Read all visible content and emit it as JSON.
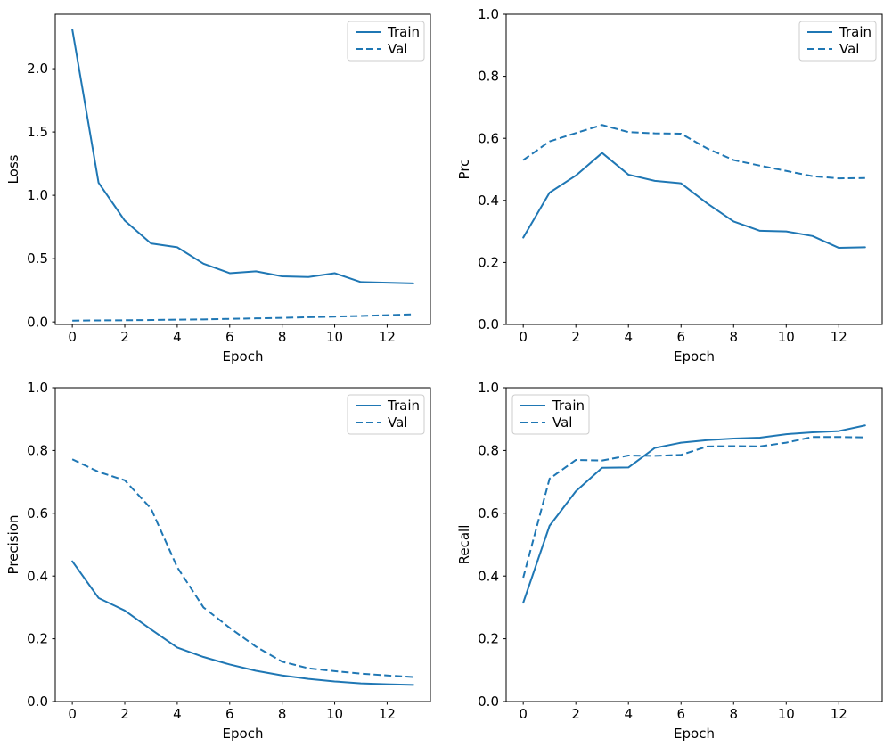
{
  "figure": {
    "background": "#ffffff",
    "line_color": "#1f77b4",
    "spine_color": "#000000",
    "legend_border_color": "#cccccc"
  },
  "legend": {
    "train_label": "Train",
    "val_label": "Val"
  },
  "chart_data": [
    {
      "id": "loss",
      "type": "line",
      "title": "",
      "xlabel": "Epoch",
      "ylabel": "Loss",
      "x": [
        0,
        1,
        2,
        3,
        4,
        5,
        6,
        7,
        8,
        9,
        10,
        11,
        12,
        13
      ],
      "series": [
        {
          "name": "Train",
          "style": "solid",
          "values": [
            2.31,
            1.1,
            0.8,
            0.62,
            0.59,
            0.46,
            0.385,
            0.4,
            0.36,
            0.355,
            0.385,
            0.315,
            0.31,
            0.305
          ]
        },
        {
          "name": "Val",
          "style": "dashed",
          "values": [
            0.01,
            0.012,
            0.013,
            0.015,
            0.018,
            0.02,
            0.024,
            0.028,
            0.032,
            0.037,
            0.042,
            0.047,
            0.053,
            0.06
          ]
        }
      ],
      "xlim": [
        -0.65,
        13.65
      ],
      "ylim": [
        -0.02,
        2.43
      ],
      "xticks": [
        0,
        2,
        4,
        6,
        8,
        10,
        12
      ],
      "xtick_labels": [
        "0",
        "2",
        "4",
        "6",
        "8",
        "10",
        "12"
      ],
      "yticks": [
        0.0,
        0.5,
        1.0,
        1.5,
        2.0
      ],
      "ytick_labels": [
        "0.0",
        "0.5",
        "1.0",
        "1.5",
        "2.0"
      ],
      "legend_pos": "upper-right",
      "grid": false
    },
    {
      "id": "prc",
      "type": "line",
      "title": "",
      "xlabel": "Epoch",
      "ylabel": "Prc",
      "x": [
        0,
        1,
        2,
        3,
        4,
        5,
        6,
        7,
        8,
        9,
        10,
        11,
        12,
        13
      ],
      "series": [
        {
          "name": "Train",
          "style": "solid",
          "values": [
            0.28,
            0.425,
            0.48,
            0.553,
            0.483,
            0.463,
            0.455,
            0.39,
            0.332,
            0.302,
            0.3,
            0.285,
            0.247,
            0.249
          ]
        },
        {
          "name": "Val",
          "style": "dashed",
          "values": [
            0.53,
            0.59,
            0.617,
            0.643,
            0.62,
            0.616,
            0.615,
            0.567,
            0.53,
            0.512,
            0.495,
            0.478,
            0.471,
            0.472
          ]
        }
      ],
      "xlim": [
        -0.65,
        13.65
      ],
      "ylim": [
        0.0,
        1.0
      ],
      "xticks": [
        0,
        2,
        4,
        6,
        8,
        10,
        12
      ],
      "xtick_labels": [
        "0",
        "2",
        "4",
        "6",
        "8",
        "10",
        "12"
      ],
      "yticks": [
        0.0,
        0.2,
        0.4,
        0.6,
        0.8,
        1.0
      ],
      "ytick_labels": [
        "0.0",
        "0.2",
        "0.4",
        "0.6",
        "0.8",
        "1.0"
      ],
      "legend_pos": "upper-right",
      "grid": false
    },
    {
      "id": "precision",
      "type": "line",
      "title": "",
      "xlabel": "Epoch",
      "ylabel": "Precision",
      "x": [
        0,
        1,
        2,
        3,
        4,
        5,
        6,
        7,
        8,
        9,
        10,
        11,
        12,
        13
      ],
      "series": [
        {
          "name": "Train",
          "style": "solid",
          "values": [
            0.447,
            0.33,
            0.29,
            0.23,
            0.172,
            0.142,
            0.118,
            0.098,
            0.083,
            0.072,
            0.064,
            0.058,
            0.055,
            0.053
          ]
        },
        {
          "name": "Val",
          "style": "dashed",
          "values": [
            0.772,
            0.732,
            0.705,
            0.615,
            0.428,
            0.3,
            0.235,
            0.175,
            0.127,
            0.106,
            0.097,
            0.089,
            0.083,
            0.078
          ]
        }
      ],
      "xlim": [
        -0.65,
        13.65
      ],
      "ylim": [
        0.0,
        1.0
      ],
      "xticks": [
        0,
        2,
        4,
        6,
        8,
        10,
        12
      ],
      "xtick_labels": [
        "0",
        "2",
        "4",
        "6",
        "8",
        "10",
        "12"
      ],
      "yticks": [
        0.0,
        0.2,
        0.4,
        0.6,
        0.8,
        1.0
      ],
      "ytick_labels": [
        "0.0",
        "0.2",
        "0.4",
        "0.6",
        "0.8",
        "1.0"
      ],
      "legend_pos": "upper-right",
      "grid": false
    },
    {
      "id": "recall",
      "type": "line",
      "title": "",
      "xlabel": "Epoch",
      "ylabel": "Recall",
      "x": [
        0,
        1,
        2,
        3,
        4,
        5,
        6,
        7,
        8,
        9,
        10,
        11,
        12,
        13
      ],
      "series": [
        {
          "name": "Train",
          "style": "solid",
          "values": [
            0.315,
            0.56,
            0.67,
            0.745,
            0.746,
            0.808,
            0.825,
            0.833,
            0.838,
            0.841,
            0.852,
            0.858,
            0.862,
            0.88
          ]
        },
        {
          "name": "Val",
          "style": "dashed",
          "values": [
            0.395,
            0.71,
            0.77,
            0.768,
            0.784,
            0.783,
            0.786,
            0.813,
            0.814,
            0.813,
            0.825,
            0.843,
            0.843,
            0.842
          ]
        }
      ],
      "xlim": [
        -0.65,
        13.65
      ],
      "ylim": [
        0.0,
        1.0
      ],
      "xticks": [
        0,
        2,
        4,
        6,
        8,
        10,
        12
      ],
      "xtick_labels": [
        "0",
        "2",
        "4",
        "6",
        "8",
        "10",
        "12"
      ],
      "yticks": [
        0.0,
        0.2,
        0.4,
        0.6,
        0.8,
        1.0
      ],
      "ytick_labels": [
        "0.0",
        "0.2",
        "0.4",
        "0.6",
        "0.8",
        "1.0"
      ],
      "legend_pos": "upper-left",
      "grid": false
    }
  ]
}
